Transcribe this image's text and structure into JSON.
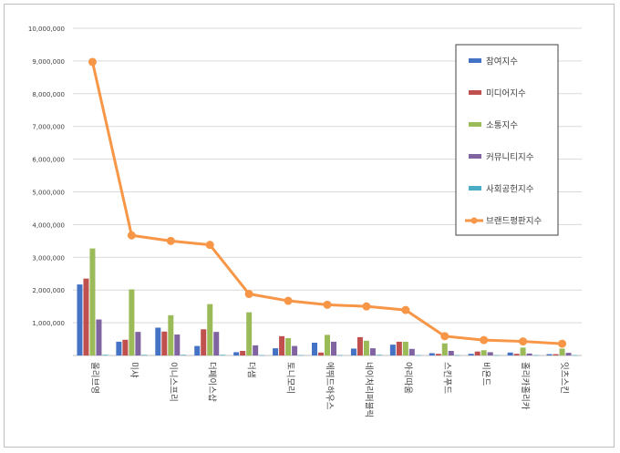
{
  "chart_data": {
    "type": "bar",
    "categories": [
      "올리브영",
      "미샤",
      "이니스프리",
      "더페이스샵",
      "더샘",
      "토니모리",
      "에뛰드하우스",
      "네이처리퍼블릭",
      "아리따움",
      "스킨푸드",
      "비욘드",
      "홀리카홀리카",
      "잇츠스킨"
    ],
    "ylim": [
      0,
      10000000
    ],
    "yticks": [
      "10,000,000",
      "9,000,000",
      "8,000,000",
      "7,000,000",
      "6,000,000",
      "5,000,000",
      "4,000,000",
      "3,000,000",
      "2,000,000",
      "1,000,000",
      ""
    ],
    "ytick_values": [
      10000000,
      9000000,
      8000000,
      7000000,
      6000000,
      5000000,
      4000000,
      3000000,
      2000000,
      1000000,
      0
    ],
    "grid": true,
    "legend_position": "top-right",
    "series": [
      {
        "name": "참여지수",
        "type": "bar",
        "color": "#4472c4",
        "values": [
          2170000,
          420000,
          850000,
          290000,
          100000,
          220000,
          390000,
          210000,
          330000,
          70000,
          50000,
          90000,
          40000
        ]
      },
      {
        "name": "미디어지수",
        "type": "bar",
        "color": "#c0504d",
        "values": [
          2350000,
          480000,
          730000,
          800000,
          140000,
          590000,
          90000,
          560000,
          420000,
          50000,
          120000,
          50000,
          40000
        ]
      },
      {
        "name": "소통지수",
        "type": "bar",
        "color": "#9bbb59",
        "values": [
          3270000,
          2020000,
          1230000,
          1570000,
          1320000,
          530000,
          630000,
          450000,
          420000,
          370000,
          160000,
          240000,
          210000
        ]
      },
      {
        "name": "커뮤니티지수",
        "type": "bar",
        "color": "#8064a2",
        "values": [
          1100000,
          720000,
          640000,
          720000,
          310000,
          290000,
          420000,
          220000,
          200000,
          140000,
          100000,
          60000,
          80000
        ]
      },
      {
        "name": "사회공헌지수",
        "type": "bar",
        "color": "#4bacc6",
        "values": [
          20000,
          20000,
          20000,
          20000,
          10000,
          10000,
          10000,
          20000,
          10000,
          10000,
          10000,
          10000,
          10000
        ]
      },
      {
        "name": "브랜드평판지수",
        "type": "line",
        "color": "#f79646",
        "values": [
          8970000,
          3670000,
          3500000,
          3380000,
          1880000,
          1670000,
          1550000,
          1500000,
          1390000,
          590000,
          470000,
          430000,
          360000
        ]
      }
    ]
  }
}
